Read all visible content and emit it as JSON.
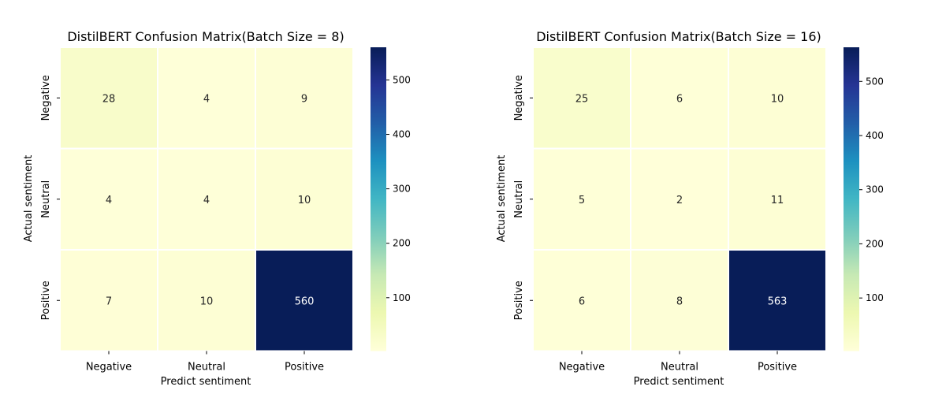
{
  "chart_data": [
    {
      "type": "heatmap",
      "title": "DistilBERT Confusion Matrix(Batch Size = 8)",
      "xlabel": "Predict sentiment",
      "ylabel": "Actual sentiment",
      "x_categories": [
        "Negative",
        "Neutral",
        "Positive"
      ],
      "y_categories": [
        "Negative",
        "Neutral",
        "Positive"
      ],
      "values": [
        [
          28,
          4,
          9
        ],
        [
          4,
          4,
          10
        ],
        [
          7,
          10,
          560
        ]
      ],
      "colormap": "YlGnBu",
      "colorbar": {
        "min": 2,
        "max": 560,
        "ticks": [
          100,
          200,
          300,
          400,
          500
        ]
      }
    },
    {
      "type": "heatmap",
      "title": "DistilBERT Confusion Matrix(Batch Size = 16)",
      "xlabel": "Predict sentiment",
      "ylabel": "Actual sentiment",
      "x_categories": [
        "Negative",
        "Neutral",
        "Positive"
      ],
      "y_categories": [
        "Negative",
        "Neutral",
        "Positive"
      ],
      "values": [
        [
          25,
          6,
          10
        ],
        [
          5,
          2,
          11
        ],
        [
          6,
          8,
          563
        ]
      ],
      "colormap": "YlGnBu",
      "colorbar": {
        "min": 2,
        "max": 563,
        "ticks": [
          100,
          200,
          300,
          400,
          500
        ]
      }
    }
  ]
}
